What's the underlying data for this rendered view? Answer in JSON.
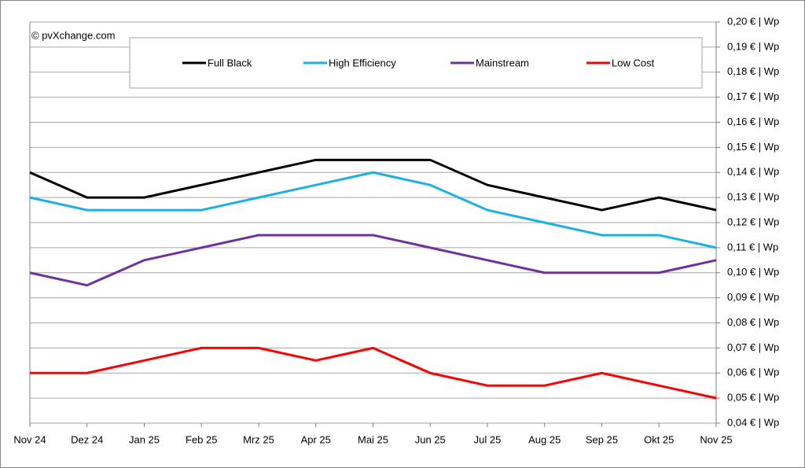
{
  "chart_data": {
    "type": "line",
    "annotation": "© pvXchange.com",
    "categories": [
      "Nov 24",
      "Dez 24",
      "Jan 25",
      "Feb 25",
      "Mrz 25",
      "Apr 25",
      "Mai 25",
      "Jun 25",
      "Jul 25",
      "Aug 25",
      "Sep 25",
      "Okt 25",
      "Nov 25"
    ],
    "series": [
      {
        "name": "Full Black",
        "color": "#000000",
        "values": [
          0.14,
          0.13,
          0.13,
          0.135,
          0.14,
          0.145,
          0.145,
          0.145,
          0.135,
          0.13,
          0.125,
          0.13,
          0.125
        ]
      },
      {
        "name": "High Efficiency",
        "color": "#1ab0e8",
        "values": [
          0.13,
          0.125,
          0.125,
          0.125,
          0.13,
          0.135,
          0.14,
          0.135,
          0.125,
          0.12,
          0.115,
          0.115,
          0.11
        ]
      },
      {
        "name": "Mainstream",
        "color": "#7030a0",
        "values": [
          0.1,
          0.095,
          0.105,
          0.11,
          0.115,
          0.115,
          0.115,
          0.11,
          0.105,
          0.1,
          0.1,
          0.1,
          0.105
        ]
      },
      {
        "name": "Low Cost",
        "color": "#ff0000",
        "values": [
          0.06,
          0.06,
          0.065,
          0.07,
          0.07,
          0.065,
          0.07,
          0.06,
          0.055,
          0.055,
          0.06,
          0.055,
          0.05
        ]
      }
    ],
    "ylim": [
      0.04,
      0.2
    ],
    "yticks": [
      {
        "value": 0.04,
        "label": "0,04 € | Wp"
      },
      {
        "value": 0.05,
        "label": "0,05 € | Wp"
      },
      {
        "value": 0.06,
        "label": "0,06 € | Wp"
      },
      {
        "value": 0.07,
        "label": "0,07 € | Wp"
      },
      {
        "value": 0.08,
        "label": "0,08 € | Wp"
      },
      {
        "value": 0.09,
        "label": "0,09 € | Wp"
      },
      {
        "value": 0.1,
        "label": "0,10 € | Wp"
      },
      {
        "value": 0.11,
        "label": "0,11 € | Wp"
      },
      {
        "value": 0.12,
        "label": "0,12 € | Wp"
      },
      {
        "value": 0.13,
        "label": "0,13 € | Wp"
      },
      {
        "value": 0.14,
        "label": "0,14 € | Wp"
      },
      {
        "value": 0.15,
        "label": "0,15 € | Wp"
      },
      {
        "value": 0.16,
        "label": "0,16 € | Wp"
      },
      {
        "value": 0.17,
        "label": "0,17 € | Wp"
      },
      {
        "value": 0.18,
        "label": "0,18 € | Wp"
      },
      {
        "value": 0.19,
        "label": "0,19 € | Wp"
      },
      {
        "value": 0.2,
        "label": "0,20 € | Wp"
      }
    ],
    "grid": true,
    "y_axis_side": "right"
  }
}
